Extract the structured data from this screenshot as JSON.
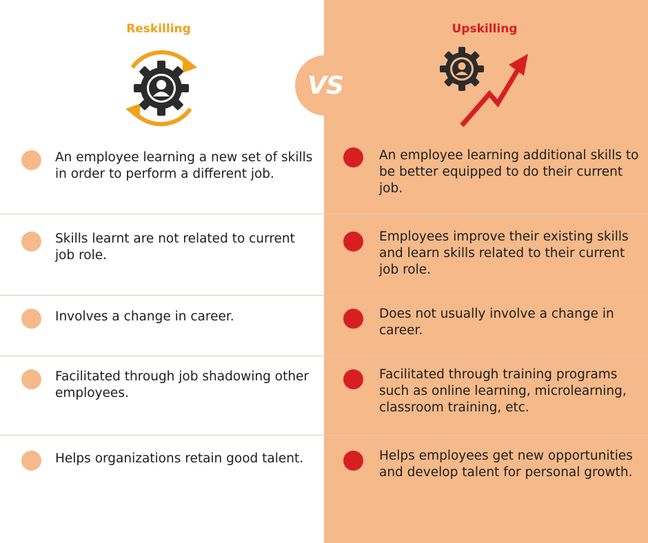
{
  "left_title": "Reskilling",
  "right_title": "Upskilling",
  "vs_label": "VS",
  "colors": {
    "reskilling_accent": "#f0a21c",
    "upskilling_accent": "#d71f21",
    "peach": "#f5b98a"
  },
  "icons": {
    "left": "gear-person-cycle-icon",
    "right": "gear-person-growth-arrow-icon"
  },
  "rows": [
    {
      "left": "An employee learning a new set of skills in order to perform a different job.",
      "right": "An employee learning additional skills to be better equipped to do their current job."
    },
    {
      "left": "Skills learnt are not related to current job role.",
      "right": "Employees improve their existing skills and learn skills related to their current job role."
    },
    {
      "left": "Involves a change in career.",
      "right": "Does not usually involve a change in career."
    },
    {
      "left": "Facilitated through job shadowing other employees.",
      "right": "Facilitated through training programs such as online learning, microlearning, classroom training, etc."
    },
    {
      "left": "Helps organizations retain good talent.",
      "right": "Helps employees get new opportunities and develop talent for personal growth."
    }
  ]
}
